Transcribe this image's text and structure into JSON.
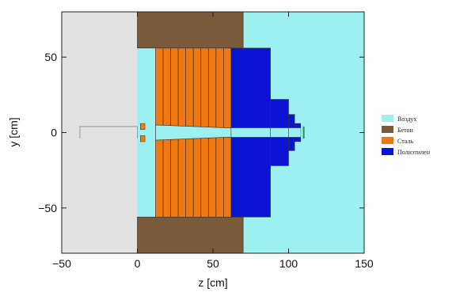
{
  "chart_data": {
    "type": "geometry-map",
    "xlabel": "z [cm]",
    "ylabel": "y [cm]",
    "xlim": [
      -50,
      150
    ],
    "ylim": [
      -80,
      80
    ],
    "x_ticks": [
      -50,
      0,
      50,
      100,
      150
    ],
    "y_ticks": [
      -50,
      0,
      50
    ],
    "legend_position": "right",
    "materials": [
      {
        "key": "void",
        "label": "",
        "color": "#e2e2e2",
        "in_legend": false
      },
      {
        "key": "air",
        "label": "Воздух",
        "color": "#9cf0f0",
        "in_legend": true
      },
      {
        "key": "concrete",
        "label": "Бетон",
        "color": "#7a5a38",
        "in_legend": true
      },
      {
        "key": "steel",
        "label": "Сталь",
        "color": "#f07812",
        "in_legend": true
      },
      {
        "key": "polyethylene",
        "label": "Полиэтилен",
        "color": "#0a14d2",
        "in_legend": true
      }
    ],
    "regions": [
      {
        "material": "void",
        "z": [
          -50,
          0
        ],
        "y": [
          -80,
          80
        ]
      },
      {
        "material": "air",
        "z": [
          0,
          70
        ],
        "y": [
          -80,
          80
        ]
      },
      {
        "material": "air",
        "z": [
          70,
          150
        ],
        "y": [
          -80,
          80
        ]
      },
      {
        "material": "concrete",
        "z": [
          0,
          70
        ],
        "y": [
          56,
          80
        ]
      },
      {
        "material": "concrete",
        "z": [
          0,
          70
        ],
        "y": [
          -80,
          -56
        ]
      },
      {
        "material": "steel",
        "z": [
          12,
          62
        ],
        "y": [
          -56,
          56
        ]
      },
      {
        "material": "polyethylene",
        "z": [
          62,
          88
        ],
        "y": [
          -56,
          56
        ]
      },
      {
        "material": "polyethylene",
        "z": [
          88,
          100
        ],
        "y": [
          -22,
          22
        ]
      },
      {
        "material": "polyethylene",
        "z": [
          100,
          104
        ],
        "y": [
          -12,
          12
        ]
      },
      {
        "material": "polyethylene",
        "z": [
          104,
          108
        ],
        "y": [
          -6,
          6
        ]
      },
      {
        "material": "air",
        "z": [
          62,
          108
        ],
        "y": [
          -3,
          3
        ]
      }
    ],
    "cone_channel": {
      "material": "air",
      "z_start": 12,
      "z_end": 62,
      "half_height_start": 5,
      "half_height_end": 3
    },
    "steel_slice_boundaries_z": [
      17,
      22,
      27,
      32,
      37,
      42,
      47,
      52,
      57
    ],
    "source_marks": [
      {
        "material": "steel",
        "z": [
          2,
          5
        ],
        "y": [
          2,
          6
        ]
      },
      {
        "material": "steel",
        "z": [
          2,
          5
        ],
        "y": [
          -6,
          -2
        ]
      }
    ]
  }
}
